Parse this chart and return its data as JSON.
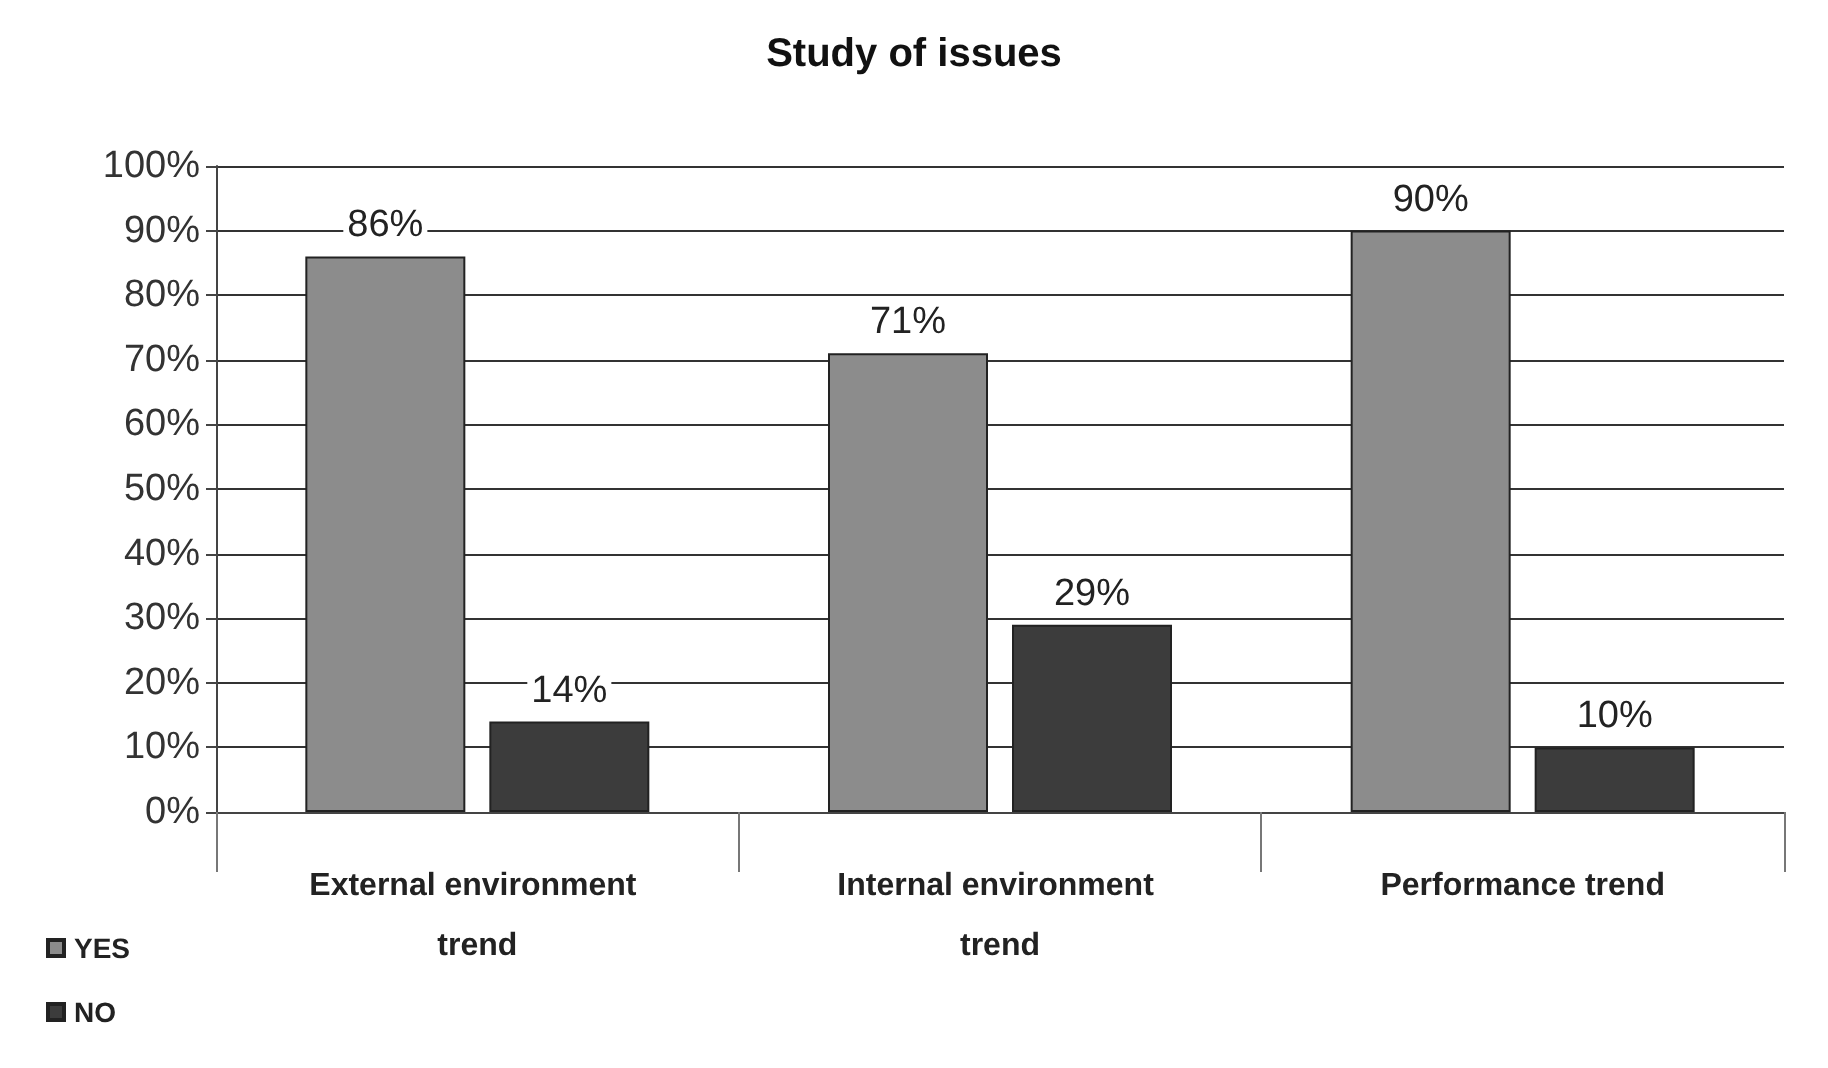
{
  "chart_data": {
    "type": "bar",
    "title": "Study of issues",
    "categories": [
      "External environment trend",
      "Internal environment trend",
      "Performance trend"
    ],
    "series": [
      {
        "name": "YES",
        "color": "#8c8c8c",
        "values": [
          86,
          71,
          90
        ],
        "value_labels": [
          "86%",
          "71%",
          "90%"
        ]
      },
      {
        "name": "NO",
        "color": "#3c3c3c",
        "values": [
          14,
          29,
          10
        ],
        "value_labels": [
          "14%",
          "29%",
          "10%"
        ]
      }
    ],
    "ylim": [
      0,
      100
    ],
    "yticks": [
      {
        "value": 0,
        "label": "0%"
      },
      {
        "value": 10,
        "label": "10%"
      },
      {
        "value": 20,
        "label": "20%"
      },
      {
        "value": 30,
        "label": "30%"
      },
      {
        "value": 40,
        "label": "40%"
      },
      {
        "value": 50,
        "label": "50%"
      },
      {
        "value": 60,
        "label": "60%"
      },
      {
        "value": 70,
        "label": "70%"
      },
      {
        "value": 80,
        "label": "80%"
      },
      {
        "value": 90,
        "label": "90%"
      },
      {
        "value": 100,
        "label": "100%"
      }
    ],
    "grid": "y",
    "legend": "bottom left"
  }
}
